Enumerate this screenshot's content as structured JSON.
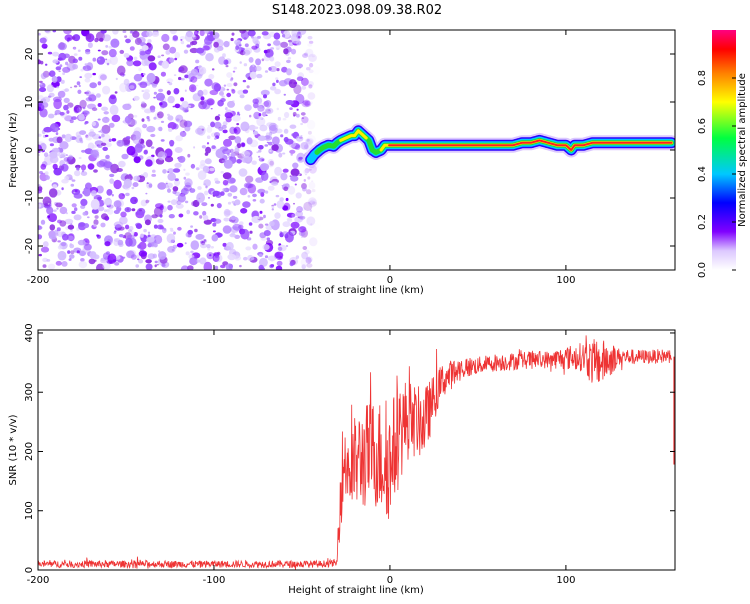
{
  "title": "S148.2023.098.09.38.R02",
  "chart_data": [
    {
      "type": "heatmap",
      "title": "S148.2023.098.09.38.R02",
      "xlabel": "Height of straight line (km)",
      "ylabel": "Frequency (Hz)",
      "xlim": [
        -200,
        162
      ],
      "ylim": [
        -25,
        25
      ],
      "xticks": [
        -200,
        -100,
        0,
        100
      ],
      "yticks": [
        -20,
        -10,
        0,
        10,
        20
      ],
      "noise_region_x": [
        -200,
        -45
      ],
      "signal_track": {
        "x": [
          -45,
          -43,
          -40,
          -38,
          -35,
          -32,
          -30,
          -28,
          -25,
          -22,
          -20,
          -18,
          -15,
          -12,
          -10,
          -8,
          -5,
          -3,
          0,
          5,
          10,
          20,
          30,
          40,
          50,
          60,
          70,
          75,
          80,
          85,
          90,
          95,
          100,
          103,
          105,
          110,
          115,
          120,
          130,
          140,
          150,
          160
        ],
        "freq": [
          -2,
          -1,
          0,
          0.5,
          1,
          0.8,
          1.5,
          2,
          2.5,
          3,
          3,
          4,
          3,
          2,
          0,
          -0.5,
          0,
          1,
          1,
          1,
          1,
          1,
          1,
          1,
          1,
          1,
          1,
          1.5,
          1.5,
          2,
          1.5,
          1,
          1,
          0,
          1,
          1,
          1.5,
          1.5,
          1.5,
          1.5,
          1.5,
          1.5
        ],
        "amplitude": [
          0.2,
          0.3,
          0.5,
          0.55,
          0.6,
          0.5,
          0.55,
          0.6,
          0.6,
          0.65,
          0.7,
          0.7,
          0.65,
          0.55,
          0.5,
          0.5,
          0.6,
          0.7,
          0.85,
          0.9,
          0.9,
          0.9,
          0.95,
          0.95,
          0.95,
          0.95,
          0.95,
          0.95,
          0.9,
          0.85,
          0.9,
          0.9,
          0.9,
          0.85,
          0.9,
          0.9,
          0.95,
          0.95,
          0.95,
          0.95,
          0.95,
          0.95
        ]
      },
      "colorbar": {
        "label": "Normalized spectral amplitude",
        "range": [
          0,
          1
        ],
        "ticks": [
          "0.0",
          "0.2",
          "0.4",
          "0.6",
          "0.8"
        ]
      }
    },
    {
      "type": "line",
      "xlabel": "Height of straight line (km)",
      "ylabel": "SNR (10 * v/v)",
      "xlim": [
        -200,
        162
      ],
      "ylim": [
        0,
        405
      ],
      "xticks": [
        -200,
        -100,
        0,
        100
      ],
      "yticks": [
        0,
        100,
        200,
        300,
        400
      ],
      "series": [
        {
          "name": "SNR",
          "color": "#ee3333",
          "x": [
            -200,
            -180,
            -160,
            -140,
            -120,
            -100,
            -80,
            -60,
            -40,
            -30,
            -28,
            -25,
            -22,
            -20,
            -15,
            -10,
            -5,
            0,
            5,
            10,
            15,
            20,
            25,
            30,
            40,
            50,
            60,
            70,
            80,
            90,
            100,
            110,
            115,
            120,
            125,
            130,
            140,
            150,
            160
          ],
          "values": [
            10,
            10,
            10,
            10,
            10,
            10,
            10,
            10,
            10,
            12,
            150,
            190,
            160,
            180,
            190,
            200,
            190,
            180,
            230,
            255,
            250,
            250,
            290,
            320,
            340,
            345,
            350,
            352,
            355,
            355,
            358,
            360,
            350,
            350,
            355,
            360,
            360,
            360,
            362
          ],
          "spread": [
            6,
            6,
            6,
            6,
            6,
            6,
            6,
            6,
            6,
            6,
            80,
            80,
            80,
            80,
            90,
            90,
            100,
            100,
            90,
            70,
            60,
            60,
            40,
            30,
            20,
            15,
            15,
            15,
            15,
            15,
            20,
            25,
            40,
            40,
            30,
            15,
            12,
            12,
            12
          ]
        }
      ]
    }
  ]
}
